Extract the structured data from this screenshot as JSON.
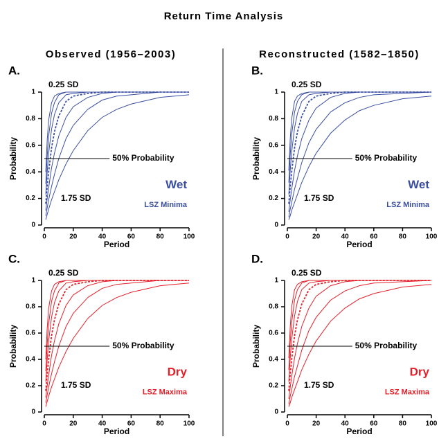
{
  "title": "Return Time Analysis",
  "column_titles": [
    "Observed (1956–2003)",
    "Reconstructed (1582–1850)"
  ],
  "chart_data": [
    {
      "type": "line",
      "panel": "A.",
      "x_label": "Period",
      "y_label": "Probability",
      "xlim": [
        0,
        100
      ],
      "ylim": [
        0,
        1
      ],
      "xticks": [
        0,
        20,
        40,
        60,
        80,
        100
      ],
      "yticks": [
        0,
        0.2,
        0.4,
        0.6,
        0.8,
        1
      ],
      "reference_y": 0.5,
      "reference_label": "50% Probability",
      "label_top": "0.25 SD",
      "label_bottom": "1.75 SD",
      "climate": "Wet",
      "extreme": "LSZ Minima",
      "color": "#3a4ea1",
      "x": [
        1,
        2,
        3,
        5,
        7,
        10,
        15,
        20,
        30,
        40,
        50,
        60,
        80,
        100
      ],
      "series": [
        {
          "color": "#3a4ea1",
          "dashed": false,
          "values": [
            0.4,
            0.64,
            0.79,
            0.92,
            0.97,
            0.99,
            1,
            1,
            1,
            1,
            1,
            1,
            1,
            1
          ]
        },
        {
          "color": "#3a4ea1",
          "dashed": false,
          "values": [
            0.31,
            0.52,
            0.67,
            0.84,
            0.92,
            0.98,
            1,
            1,
            1,
            1,
            1,
            1,
            1,
            1
          ]
        },
        {
          "color": "#3a4ea1",
          "dashed": false,
          "values": [
            0.23,
            0.4,
            0.54,
            0.72,
            0.83,
            0.92,
            0.98,
            0.99,
            1,
            1,
            1,
            1,
            1,
            1
          ]
        },
        {
          "color": "#3a4ea1",
          "dashed": true,
          "values": [
            0.16,
            0.29,
            0.4,
            0.58,
            0.7,
            0.82,
            0.93,
            0.97,
            0.99,
            1,
            1,
            1,
            1,
            1
          ]
        },
        {
          "color": "#3a4ea1",
          "dashed": false,
          "values": [
            0.11,
            0.2,
            0.28,
            0.43,
            0.54,
            0.67,
            0.81,
            0.89,
            0.96,
            0.99,
            1,
            1,
            1,
            1
          ]
        },
        {
          "color": "#3a4ea1",
          "dashed": false,
          "values": [
            0.07,
            0.13,
            0.19,
            0.29,
            0.38,
            0.5,
            0.65,
            0.75,
            0.87,
            0.94,
            0.97,
            0.98,
            1,
            1
          ]
        },
        {
          "color": "#3a4ea1",
          "dashed": false,
          "values": [
            0.04,
            0.08,
            0.12,
            0.19,
            0.25,
            0.34,
            0.46,
            0.56,
            0.71,
            0.81,
            0.87,
            0.91,
            0.96,
            0.98
          ]
        }
      ]
    },
    {
      "type": "line",
      "panel": "B.",
      "x_label": "Period",
      "y_label": "Probability",
      "xlim": [
        0,
        100
      ],
      "ylim": [
        0,
        1
      ],
      "xticks": [
        0,
        20,
        40,
        60,
        80,
        100
      ],
      "yticks": [
        0,
        0.2,
        0.4,
        0.6,
        0.8,
        1
      ],
      "reference_y": 0.5,
      "reference_label": "50% Probability",
      "label_top": "0.25 SD",
      "label_bottom": "1.75 SD",
      "climate": "Wet",
      "extreme": "LSZ Minima",
      "color": "#3a4ea1",
      "x": [
        1,
        2,
        3,
        5,
        7,
        10,
        15,
        20,
        30,
        40,
        50,
        60,
        80,
        100
      ],
      "series": [
        {
          "color": "#3a4ea1",
          "dashed": false,
          "values": [
            0.41,
            0.65,
            0.8,
            0.93,
            0.97,
            0.99,
            1,
            1,
            1,
            1,
            1,
            1,
            1,
            1
          ]
        },
        {
          "color": "#3a4ea1",
          "dashed": false,
          "values": [
            0.32,
            0.53,
            0.68,
            0.85,
            0.93,
            0.98,
            1,
            1,
            1,
            1,
            1,
            1,
            1,
            1
          ]
        },
        {
          "color": "#3a4ea1",
          "dashed": false,
          "values": [
            0.23,
            0.41,
            0.55,
            0.73,
            0.84,
            0.93,
            0.98,
            0.99,
            1,
            1,
            1,
            1,
            1,
            1
          ]
        },
        {
          "color": "#3a4ea1",
          "dashed": true,
          "values": [
            0.16,
            0.29,
            0.4,
            0.58,
            0.7,
            0.82,
            0.93,
            0.97,
            0.99,
            1,
            1,
            1,
            1,
            1
          ]
        },
        {
          "color": "#3a4ea1",
          "dashed": false,
          "values": [
            0.1,
            0.19,
            0.27,
            0.41,
            0.52,
            0.65,
            0.79,
            0.88,
            0.96,
            0.99,
            1,
            1,
            1,
            1
          ]
        },
        {
          "color": "#3a4ea1",
          "dashed": false,
          "values": [
            0.06,
            0.12,
            0.17,
            0.27,
            0.35,
            0.47,
            0.62,
            0.72,
            0.85,
            0.92,
            0.96,
            0.98,
            0.99,
            1
          ]
        },
        {
          "color": "#3a4ea1",
          "dashed": false,
          "values": [
            0.04,
            0.07,
            0.11,
            0.17,
            0.23,
            0.32,
            0.44,
            0.54,
            0.69,
            0.79,
            0.86,
            0.9,
            0.95,
            0.97
          ]
        }
      ]
    },
    {
      "type": "line",
      "panel": "C.",
      "x_label": "Period",
      "y_label": "Probability",
      "xlim": [
        0,
        100
      ],
      "ylim": [
        0,
        1
      ],
      "xticks": [
        0,
        20,
        40,
        60,
        80,
        100
      ],
      "yticks": [
        0,
        0.2,
        0.4,
        0.6,
        0.8,
        1
      ],
      "reference_y": 0.5,
      "reference_label": "50% Probability",
      "label_top": "0.25 SD",
      "label_bottom": "1.75 SD",
      "climate": "Dry",
      "extreme": "LSZ Maxima",
      "color": "#e3202a",
      "x": [
        1,
        2,
        3,
        5,
        7,
        10,
        15,
        20,
        30,
        40,
        50,
        60,
        80,
        100
      ],
      "series": [
        {
          "color": "#e3202a",
          "dashed": false,
          "values": [
            0.4,
            0.64,
            0.79,
            0.92,
            0.97,
            0.99,
            1,
            1,
            1,
            1,
            1,
            1,
            1,
            1
          ]
        },
        {
          "color": "#e3202a",
          "dashed": false,
          "values": [
            0.31,
            0.52,
            0.67,
            0.84,
            0.92,
            0.98,
            1,
            1,
            1,
            1,
            1,
            1,
            1,
            1
          ]
        },
        {
          "color": "#e3202a",
          "dashed": false,
          "values": [
            0.23,
            0.4,
            0.54,
            0.72,
            0.83,
            0.92,
            0.98,
            0.99,
            1,
            1,
            1,
            1,
            1,
            1
          ]
        },
        {
          "color": "#e3202a",
          "dashed": true,
          "values": [
            0.16,
            0.29,
            0.4,
            0.58,
            0.7,
            0.82,
            0.93,
            0.97,
            0.99,
            1,
            1,
            1,
            1,
            1
          ]
        },
        {
          "color": "#e3202a",
          "dashed": false,
          "values": [
            0.11,
            0.2,
            0.28,
            0.43,
            0.54,
            0.67,
            0.81,
            0.89,
            0.96,
            0.99,
            1,
            1,
            1,
            1
          ]
        },
        {
          "color": "#e3202a",
          "dashed": false,
          "values": [
            0.07,
            0.13,
            0.19,
            0.29,
            0.38,
            0.5,
            0.65,
            0.75,
            0.87,
            0.94,
            0.97,
            0.98,
            1,
            1
          ]
        },
        {
          "color": "#e3202a",
          "dashed": false,
          "values": [
            0.04,
            0.08,
            0.12,
            0.19,
            0.25,
            0.34,
            0.46,
            0.56,
            0.71,
            0.81,
            0.87,
            0.91,
            0.96,
            0.98
          ]
        }
      ]
    },
    {
      "type": "line",
      "panel": "D.",
      "x_label": "Period",
      "y_label": "Probability",
      "xlim": [
        0,
        100
      ],
      "ylim": [
        0,
        1
      ],
      "xticks": [
        0,
        20,
        40,
        60,
        80,
        100
      ],
      "yticks": [
        0,
        0.2,
        0.4,
        0.6,
        0.8,
        1
      ],
      "reference_y": 0.5,
      "reference_label": "50% Probability",
      "label_top": "0.25 SD",
      "label_bottom": "1.75 SD",
      "climate": "Dry",
      "extreme": "LSZ Maxima",
      "color": "#e3202a",
      "x": [
        1,
        2,
        3,
        5,
        7,
        10,
        15,
        20,
        30,
        40,
        50,
        60,
        80,
        100
      ],
      "series": [
        {
          "color": "#e3202a",
          "dashed": false,
          "values": [
            0.41,
            0.65,
            0.8,
            0.93,
            0.97,
            0.99,
            1,
            1,
            1,
            1,
            1,
            1,
            1,
            1
          ]
        },
        {
          "color": "#e3202a",
          "dashed": false,
          "values": [
            0.32,
            0.53,
            0.68,
            0.85,
            0.93,
            0.98,
            1,
            1,
            1,
            1,
            1,
            1,
            1,
            1
          ]
        },
        {
          "color": "#e3202a",
          "dashed": false,
          "values": [
            0.23,
            0.41,
            0.55,
            0.73,
            0.84,
            0.93,
            0.98,
            0.99,
            1,
            1,
            1,
            1,
            1,
            1
          ]
        },
        {
          "color": "#e3202a",
          "dashed": true,
          "values": [
            0.16,
            0.29,
            0.4,
            0.58,
            0.7,
            0.82,
            0.93,
            0.97,
            0.99,
            1,
            1,
            1,
            1,
            1
          ]
        },
        {
          "color": "#e3202a",
          "dashed": false,
          "values": [
            0.1,
            0.19,
            0.27,
            0.41,
            0.52,
            0.65,
            0.79,
            0.88,
            0.96,
            0.99,
            1,
            1,
            1,
            1
          ]
        },
        {
          "color": "#e3202a",
          "dashed": false,
          "values": [
            0.06,
            0.12,
            0.17,
            0.27,
            0.35,
            0.47,
            0.62,
            0.72,
            0.85,
            0.92,
            0.96,
            0.98,
            0.99,
            1
          ]
        },
        {
          "color": "#e3202a",
          "dashed": false,
          "values": [
            0.04,
            0.07,
            0.11,
            0.17,
            0.23,
            0.32,
            0.44,
            0.54,
            0.69,
            0.79,
            0.86,
            0.9,
            0.95,
            0.97
          ]
        }
      ]
    }
  ]
}
